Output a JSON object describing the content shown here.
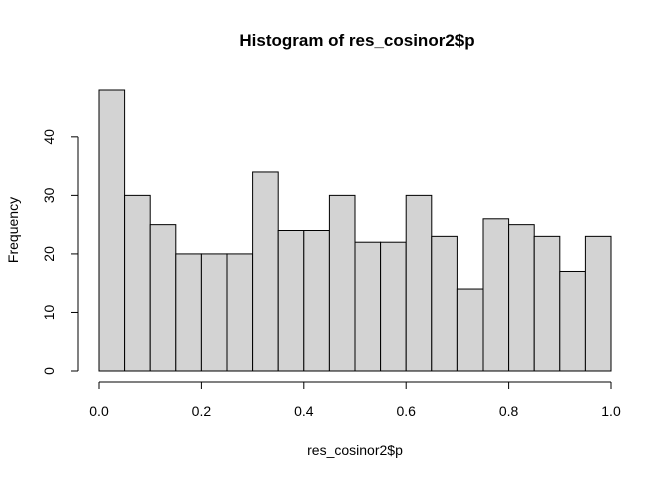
{
  "chart_data": {
    "type": "bar",
    "title": "Histogram of res_cosinor2$p",
    "xlabel": "res_cosinor2$p",
    "ylabel": "Frequency",
    "bin_width": 0.05,
    "bins": [
      {
        "start": 0.0,
        "end": 0.05,
        "count": 48
      },
      {
        "start": 0.05,
        "end": 0.1,
        "count": 30
      },
      {
        "start": 0.1,
        "end": 0.15,
        "count": 25
      },
      {
        "start": 0.15,
        "end": 0.2,
        "count": 20
      },
      {
        "start": 0.2,
        "end": 0.25,
        "count": 20
      },
      {
        "start": 0.25,
        "end": 0.3,
        "count": 20
      },
      {
        "start": 0.3,
        "end": 0.35,
        "count": 34
      },
      {
        "start": 0.35,
        "end": 0.4,
        "count": 24
      },
      {
        "start": 0.4,
        "end": 0.45,
        "count": 24
      },
      {
        "start": 0.45,
        "end": 0.5,
        "count": 30
      },
      {
        "start": 0.5,
        "end": 0.55,
        "count": 22
      },
      {
        "start": 0.55,
        "end": 0.6,
        "count": 22
      },
      {
        "start": 0.6,
        "end": 0.65,
        "count": 30
      },
      {
        "start": 0.65,
        "end": 0.7,
        "count": 23
      },
      {
        "start": 0.7,
        "end": 0.75,
        "count": 14
      },
      {
        "start": 0.75,
        "end": 0.8,
        "count": 26
      },
      {
        "start": 0.8,
        "end": 0.85,
        "count": 25
      },
      {
        "start": 0.85,
        "end": 0.9,
        "count": 23
      },
      {
        "start": 0.9,
        "end": 0.95,
        "count": 17
      },
      {
        "start": 0.95,
        "end": 1.0,
        "count": 23
      }
    ],
    "xlim": [
      0,
      1
    ],
    "ylim": [
      0,
      48
    ],
    "x_ticks": [
      0.0,
      0.2,
      0.4,
      0.6,
      0.8,
      1.0
    ],
    "x_tick_labels": [
      "0.0",
      "0.2",
      "0.4",
      "0.6",
      "0.8",
      "1.0"
    ],
    "y_ticks": [
      0,
      10,
      20,
      30,
      40
    ],
    "y_tick_labels": [
      "0",
      "10",
      "20",
      "30",
      "40"
    ],
    "grid": false,
    "bar_fill": "#d3d3d3",
    "bar_stroke": "#000000"
  }
}
